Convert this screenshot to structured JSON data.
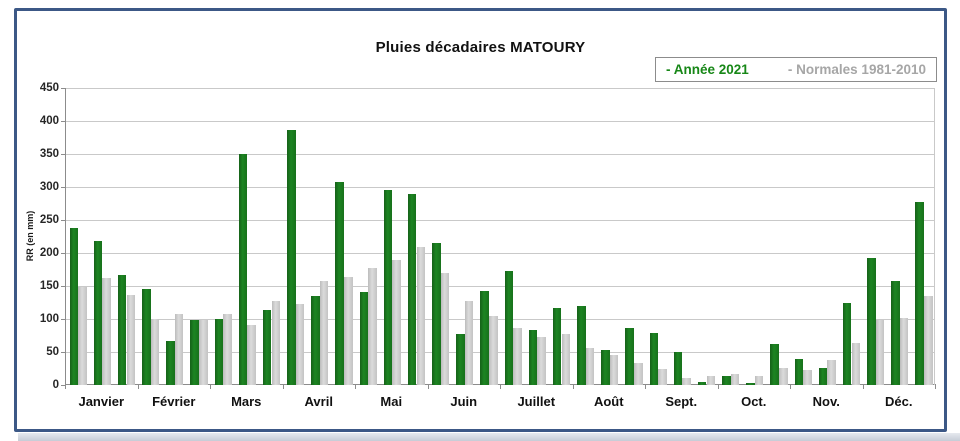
{
  "chart": {
    "title": "Pluies décadaires MATOURY",
    "ylabel": "RR (en mm)"
  },
  "legend": {
    "annee_label": "- Année 2021",
    "normales_label": "- Normales 1981-2010",
    "annee_color": "#178717",
    "normales_color": "#a6a6a6"
  },
  "chart_data": {
    "type": "bar",
    "title": "Pluies décadaires MATOURY",
    "ylabel": "RR (en mm)",
    "ylim": [
      0,
      450
    ],
    "ytick_step": 50,
    "yticks": [
      0,
      50,
      100,
      150,
      200,
      250,
      300,
      350,
      400,
      450
    ],
    "grid": true,
    "legend_position": "top-right",
    "categories": [
      "Janvier",
      "Février",
      "Mars",
      "Avril",
      "Mai",
      "Juin",
      "Juillet",
      "Août",
      "Sept.",
      "Oct.",
      "Nov.",
      "Déc."
    ],
    "decades_per_month": 3,
    "series": [
      {
        "name": "Année 2021",
        "color": "#1b7a1e",
        "values": [
          238,
          218,
          167,
          146,
          67,
          98,
          100,
          350,
          113,
          387,
          135,
          307,
          141,
          296,
          290,
          215,
          78,
          142,
          172,
          83,
          117,
          120,
          53,
          87,
          79,
          50,
          4,
          13,
          3,
          62,
          40,
          26,
          125,
          193,
          157,
          277
        ]
      },
      {
        "name": "Normales 1981-2010",
        "color": "#c9c9c9",
        "values": [
          149,
          162,
          137,
          100,
          107,
          98,
          108,
          91,
          128,
          122,
          157,
          163,
          177,
          189,
          209,
          170,
          127,
          104,
          86,
          72,
          78,
          56,
          45,
          33,
          24,
          11,
          13,
          16,
          14,
          26,
          22,
          38,
          63,
          98,
          101,
          135
        ]
      }
    ]
  }
}
